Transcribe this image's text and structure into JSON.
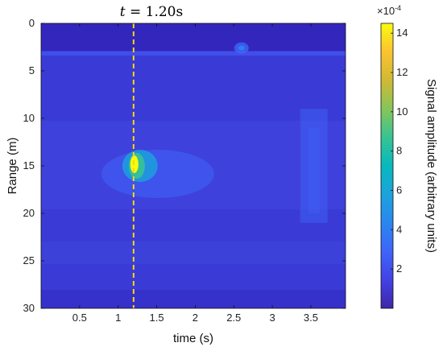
{
  "chart_data": {
    "type": "heatmap",
    "title": "",
    "xlabel": "time (s)",
    "ylabel": "Range (m)",
    "xlim": [
      0,
      3.95
    ],
    "ylim": [
      30,
      0
    ],
    "x_ticks": [
      0.5,
      1,
      1.5,
      2,
      2.5,
      3,
      3.5
    ],
    "x_tick_labels": [
      "0.5",
      "1",
      "1.5",
      "2",
      "2.5",
      "3",
      "3.5"
    ],
    "y_ticks": [
      0,
      5,
      10,
      15,
      20,
      25,
      30
    ],
    "y_tick_labels": [
      "0",
      "5",
      "10",
      "15",
      "20",
      "25",
      "30"
    ],
    "colormap": "parula",
    "colorbar": {
      "label": "Signal amplitude (arbitrary units)",
      "exponent_label": "×10",
      "exponent_power": "-4",
      "range": [
        0,
        14.5
      ],
      "ticks": [
        2,
        4,
        6,
        8,
        10,
        12,
        14
      ],
      "tick_labels": [
        "2",
        "4",
        "6",
        "8",
        "10",
        "12",
        "14"
      ]
    },
    "marker": {
      "time": 1.2,
      "label_var": "t",
      "label_value": " = 1.20s",
      "color": "#ffd700"
    },
    "features": [
      {
        "t": 1.2,
        "r": 15.0,
        "amp": 14.5
      },
      {
        "t": 2.6,
        "r": 2.6,
        "amp": 4.5
      },
      {
        "t": 3.55,
        "r": 15.0,
        "amp": 3.5
      }
    ],
    "background_amp": 1.6
  }
}
